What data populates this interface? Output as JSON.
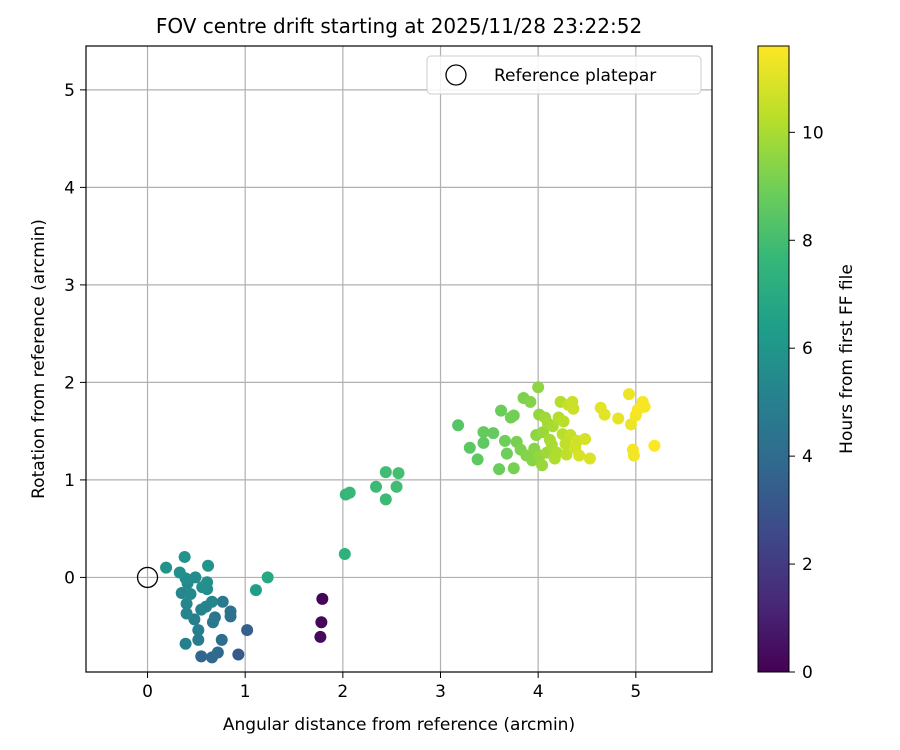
{
  "chart_data": {
    "type": "scatter",
    "title": "FOV centre drift starting at 2025/11/28 23:22:52",
    "xlabel": "Angular distance from reference (arcmin)",
    "ylabel": "Rotation from reference (arcmin)",
    "xlim": [
      -0.63,
      5.78
    ],
    "ylim": [
      -0.97,
      5.45
    ],
    "xticks": [
      0,
      1,
      2,
      3,
      4,
      5
    ],
    "yticks": [
      0,
      1,
      2,
      3,
      4,
      5
    ],
    "grid": true,
    "legend": {
      "position": "top-right",
      "label": "Reference platepar"
    },
    "reference_point": {
      "x": 0,
      "y": 0
    },
    "colorbar": {
      "label": "Hours from first FF file",
      "range": [
        0,
        11.6
      ],
      "ticks": [
        0,
        2,
        4,
        6,
        8,
        10
      ],
      "colormap": "viridis"
    },
    "points": [
      {
        "x": 1.79,
        "y": -0.22,
        "t": 0.1
      },
      {
        "x": 1.78,
        "y": -0.46,
        "t": 0.2
      },
      {
        "x": 1.77,
        "y": -0.61,
        "t": 0.3
      },
      {
        "x": 0.93,
        "y": -0.79,
        "t": 3.3
      },
      {
        "x": 1.02,
        "y": -0.54,
        "t": 3.5
      },
      {
        "x": 0.55,
        "y": -0.81,
        "t": 3.8
      },
      {
        "x": 0.66,
        "y": -0.82,
        "t": 3.9
      },
      {
        "x": 0.72,
        "y": -0.77,
        "t": 4.0
      },
      {
        "x": 0.76,
        "y": -0.64,
        "t": 4.1
      },
      {
        "x": 0.85,
        "y": -0.4,
        "t": 4.3
      },
      {
        "x": 0.85,
        "y": -0.35,
        "t": 4.4
      },
      {
        "x": 0.69,
        "y": -0.41,
        "t": 4.5
      },
      {
        "x": 0.67,
        "y": -0.46,
        "t": 4.6
      },
      {
        "x": 0.77,
        "y": -0.25,
        "t": 4.7
      },
      {
        "x": 0.52,
        "y": -0.64,
        "t": 4.8
      },
      {
        "x": 0.52,
        "y": -0.54,
        "t": 4.9
      },
      {
        "x": 0.39,
        "y": -0.68,
        "t": 5.0
      },
      {
        "x": 0.48,
        "y": -0.43,
        "t": 5.0
      },
      {
        "x": 0.55,
        "y": -0.33,
        "t": 5.1
      },
      {
        "x": 0.6,
        "y": -0.3,
        "t": 5.2
      },
      {
        "x": 0.66,
        "y": -0.25,
        "t": 5.3
      },
      {
        "x": 0.4,
        "y": -0.37,
        "t": 5.3
      },
      {
        "x": 0.4,
        "y": -0.27,
        "t": 5.4
      },
      {
        "x": 0.35,
        "y": -0.16,
        "t": 5.4
      },
      {
        "x": 0.44,
        "y": -0.17,
        "t": 5.5
      },
      {
        "x": 0.41,
        "y": -0.06,
        "t": 5.5
      },
      {
        "x": 0.39,
        "y": -0.01,
        "t": 5.6
      },
      {
        "x": 0.49,
        "y": 0.0,
        "t": 5.6
      },
      {
        "x": 0.56,
        "y": -0.1,
        "t": 5.7
      },
      {
        "x": 0.61,
        "y": -0.12,
        "t": 5.7
      },
      {
        "x": 0.61,
        "y": -0.05,
        "t": 5.8
      },
      {
        "x": 0.33,
        "y": 0.05,
        "t": 5.8
      },
      {
        "x": 0.19,
        "y": 0.1,
        "t": 5.9
      },
      {
        "x": 0.38,
        "y": 0.21,
        "t": 5.9
      },
      {
        "x": 0.62,
        "y": 0.12,
        "t": 6.0
      },
      {
        "x": 1.11,
        "y": -0.13,
        "t": 6.5
      },
      {
        "x": 1.23,
        "y": 0.0,
        "t": 6.9
      },
      {
        "x": 2.02,
        "y": 0.24,
        "t": 7.4
      },
      {
        "x": 2.03,
        "y": 0.85,
        "t": 7.7
      },
      {
        "x": 2.07,
        "y": 0.87,
        "t": 7.8
      },
      {
        "x": 2.34,
        "y": 0.93,
        "t": 7.9
      },
      {
        "x": 2.44,
        "y": 0.8,
        "t": 7.9
      },
      {
        "x": 2.44,
        "y": 1.08,
        "t": 8.0
      },
      {
        "x": 2.55,
        "y": 0.93,
        "t": 8.0
      },
      {
        "x": 2.57,
        "y": 1.07,
        "t": 8.1
      },
      {
        "x": 3.18,
        "y": 1.56,
        "t": 8.5
      },
      {
        "x": 3.3,
        "y": 1.33,
        "t": 8.6
      },
      {
        "x": 3.38,
        "y": 1.21,
        "t": 8.7
      },
      {
        "x": 3.44,
        "y": 1.38,
        "t": 8.7
      },
      {
        "x": 3.44,
        "y": 1.49,
        "t": 8.8
      },
      {
        "x": 3.54,
        "y": 1.48,
        "t": 8.8
      },
      {
        "x": 3.6,
        "y": 1.11,
        "t": 8.9
      },
      {
        "x": 3.62,
        "y": 1.71,
        "t": 8.9
      },
      {
        "x": 3.66,
        "y": 1.4,
        "t": 9.0
      },
      {
        "x": 3.68,
        "y": 1.27,
        "t": 9.0
      },
      {
        "x": 3.72,
        "y": 1.64,
        "t": 9.1
      },
      {
        "x": 3.75,
        "y": 1.66,
        "t": 9.1
      },
      {
        "x": 3.75,
        "y": 1.12,
        "t": 9.2
      },
      {
        "x": 3.78,
        "y": 1.39,
        "t": 9.2
      },
      {
        "x": 3.82,
        "y": 1.31,
        "t": 9.3
      },
      {
        "x": 3.85,
        "y": 1.84,
        "t": 9.3
      },
      {
        "x": 3.88,
        "y": 1.25,
        "t": 9.4
      },
      {
        "x": 3.92,
        "y": 1.8,
        "t": 9.4
      },
      {
        "x": 3.94,
        "y": 1.2,
        "t": 9.5
      },
      {
        "x": 3.96,
        "y": 1.32,
        "t": 9.5
      },
      {
        "x": 3.98,
        "y": 1.46,
        "t": 9.6
      },
      {
        "x": 4.0,
        "y": 1.95,
        "t": 9.6
      },
      {
        "x": 4.01,
        "y": 1.67,
        "t": 9.7
      },
      {
        "x": 4.02,
        "y": 1.25,
        "t": 9.7
      },
      {
        "x": 4.04,
        "y": 1.15,
        "t": 9.8
      },
      {
        "x": 4.05,
        "y": 1.49,
        "t": 9.8
      },
      {
        "x": 4.07,
        "y": 1.64,
        "t": 9.9
      },
      {
        "x": 4.09,
        "y": 1.28,
        "t": 9.9
      },
      {
        "x": 4.1,
        "y": 1.58,
        "t": 10.0
      },
      {
        "x": 4.12,
        "y": 1.41,
        "t": 10.0
      },
      {
        "x": 4.14,
        "y": 1.36,
        "t": 10.1
      },
      {
        "x": 4.15,
        "y": 1.55,
        "t": 10.1
      },
      {
        "x": 4.17,
        "y": 1.22,
        "t": 10.2
      },
      {
        "x": 4.19,
        "y": 1.28,
        "t": 10.2
      },
      {
        "x": 4.21,
        "y": 1.64,
        "t": 10.3
      },
      {
        "x": 4.23,
        "y": 1.8,
        "t": 10.3
      },
      {
        "x": 4.25,
        "y": 1.47,
        "t": 10.4
      },
      {
        "x": 4.26,
        "y": 1.6,
        "t": 10.4
      },
      {
        "x": 4.28,
        "y": 1.37,
        "t": 10.5
      },
      {
        "x": 4.29,
        "y": 1.26,
        "t": 10.5
      },
      {
        "x": 4.31,
        "y": 1.77,
        "t": 10.6
      },
      {
        "x": 4.33,
        "y": 1.46,
        "t": 10.6
      },
      {
        "x": 4.35,
        "y": 1.8,
        "t": 10.7
      },
      {
        "x": 4.36,
        "y": 1.73,
        "t": 10.7
      },
      {
        "x": 4.38,
        "y": 1.33,
        "t": 10.8
      },
      {
        "x": 4.4,
        "y": 1.4,
        "t": 10.8
      },
      {
        "x": 4.42,
        "y": 1.25,
        "t": 10.9
      },
      {
        "x": 4.48,
        "y": 1.42,
        "t": 10.9
      },
      {
        "x": 4.53,
        "y": 1.22,
        "t": 11.0
      },
      {
        "x": 4.64,
        "y": 1.74,
        "t": 11.1
      },
      {
        "x": 4.68,
        "y": 1.67,
        "t": 11.1
      },
      {
        "x": 4.82,
        "y": 1.63,
        "t": 11.2
      },
      {
        "x": 4.93,
        "y": 1.88,
        "t": 11.3
      },
      {
        "x": 4.95,
        "y": 1.57,
        "t": 11.3
      },
      {
        "x": 4.97,
        "y": 1.31,
        "t": 11.4
      },
      {
        "x": 4.98,
        "y": 1.25,
        "t": 11.4
      },
      {
        "x": 5.0,
        "y": 1.66,
        "t": 11.4
      },
      {
        "x": 5.02,
        "y": 1.72,
        "t": 11.5
      },
      {
        "x": 5.07,
        "y": 1.8,
        "t": 11.5
      },
      {
        "x": 5.09,
        "y": 1.75,
        "t": 11.5
      },
      {
        "x": 5.19,
        "y": 1.35,
        "t": 11.6
      }
    ]
  }
}
